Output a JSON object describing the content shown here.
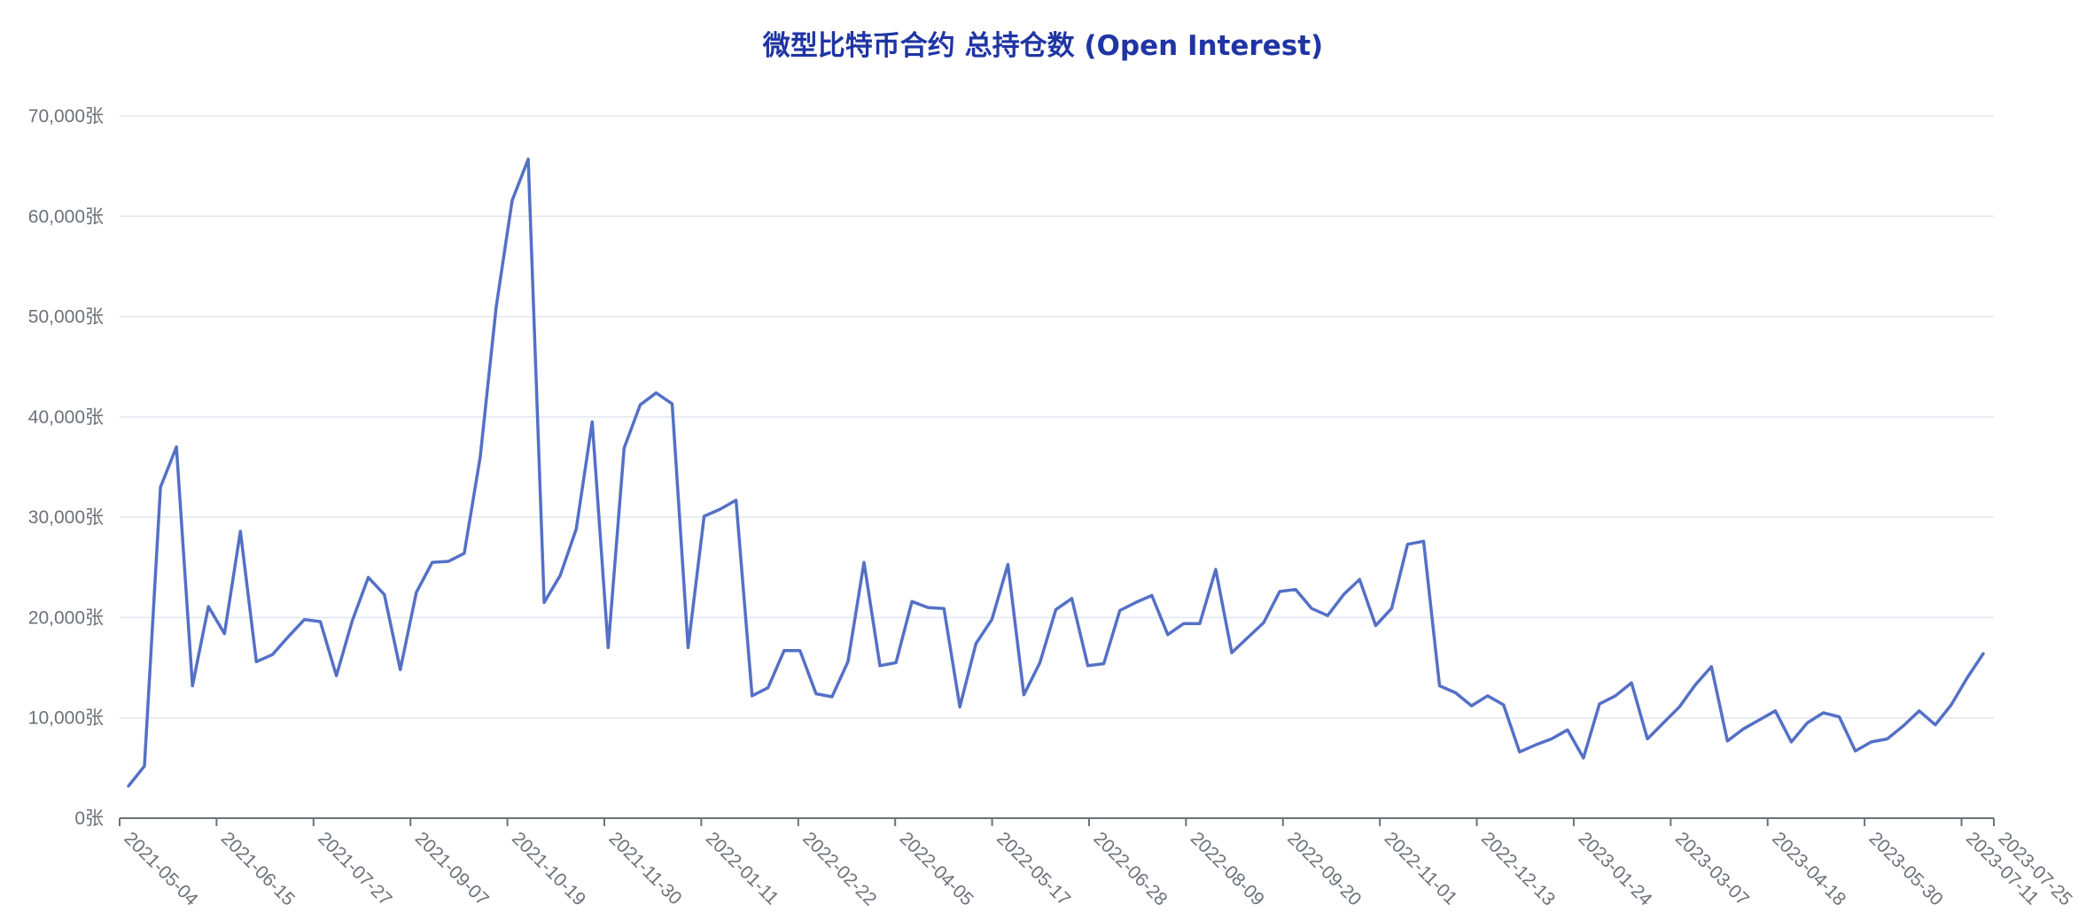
{
  "chart_data": {
    "type": "line",
    "title": "微型比特币合约 总持仓数 (Open Interest)",
    "xlabel": "",
    "ylabel": "",
    "y_unit_suffix": "张",
    "ylim": [
      0,
      70000
    ],
    "y_ticks": [
      0,
      10000,
      20000,
      30000,
      40000,
      50000,
      60000,
      70000
    ],
    "y_tick_labels": [
      "0张",
      "10,000张",
      "20,000张",
      "30,000张",
      "40,000张",
      "50,000张",
      "60,000张",
      "70,000张"
    ],
    "x_tick_labels": [
      "2021-05-04",
      "2021-06-15",
      "2021-07-27",
      "2021-09-07",
      "2021-10-19",
      "2021-11-30",
      "2022-01-11",
      "2022-02-22",
      "2022-04-05",
      "2022-05-17",
      "2022-06-28",
      "2022-08-09",
      "2022-09-20",
      "2022-11-01",
      "2022-12-13",
      "2023-01-24",
      "2023-03-07",
      "2023-04-18",
      "2023-05-30",
      "2023-07-11",
      "2023-07-25"
    ],
    "x_start": "2021-05-04",
    "x_end": "2023-07-25",
    "grid": true,
    "legend": "none",
    "line_color": "#5470c6",
    "series": [
      {
        "values": [
          3200,
          5200,
          33000,
          37000,
          13200,
          21100,
          18400,
          28600,
          15600,
          16300,
          18100,
          19800,
          19600,
          14200,
          19700,
          24000,
          22300,
          14800,
          22500,
          25500,
          25600,
          26400,
          36000,
          51000,
          61600,
          65700,
          21500,
          24200,
          28800,
          39500,
          17000,
          36900,
          41200,
          42400,
          41300,
          17000,
          30100,
          30800,
          31700,
          12200,
          13000,
          16700,
          16700,
          12400,
          12100,
          15600,
          25500,
          15200,
          15500,
          21600,
          21000,
          20900,
          11100,
          17400,
          19800,
          25300,
          12300,
          15500,
          20800,
          21900,
          15200,
          15400,
          20700,
          21500,
          22200,
          18300,
          19400,
          19400,
          24800,
          16500,
          18000,
          19500,
          22600,
          22800,
          20900,
          20200,
          22300,
          23800,
          19200,
          20900,
          27300,
          27600,
          13200,
          12500,
          11200,
          12200,
          11300,
          6600,
          7300,
          7900,
          8800,
          6000,
          11400,
          12200,
          13500,
          7900,
          9500,
          11100,
          13300,
          15100,
          7700,
          8900,
          9800,
          10700,
          7600,
          9500,
          10500,
          10100,
          6700,
          7600,
          7900,
          9200,
          10700,
          9300,
          11300,
          14000,
          16400
        ]
      }
    ]
  }
}
